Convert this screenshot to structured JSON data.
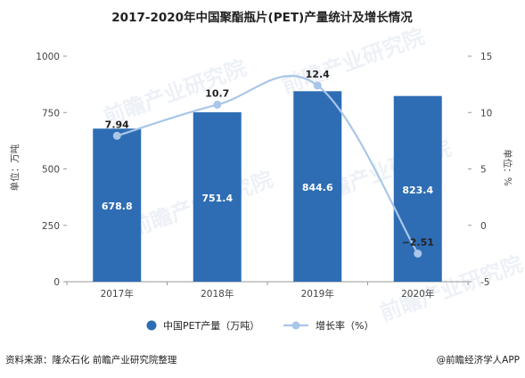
{
  "chart_data": {
    "type": "bar",
    "title": "2017-2020年中国聚酯瓶片(PET)产量统计及增长情况",
    "categories": [
      "2017年",
      "2018年",
      "2019年",
      "2020年"
    ],
    "series": [
      {
        "name": "中国PET产量（万吨）",
        "type": "bar",
        "axis": "left",
        "color": "#2e6db4",
        "values": [
          678.8,
          751.4,
          844.6,
          823.4
        ],
        "labels": [
          "678.8",
          "751.4",
          "844.6",
          "823.4"
        ]
      },
      {
        "name": "增长率（%）",
        "type": "line",
        "axis": "right",
        "color": "#a9c6e8",
        "values": [
          7.94,
          10.7,
          12.4,
          -2.51
        ],
        "labels": [
          "7.94",
          "10.7",
          "12.4",
          "−2.51"
        ]
      }
    ],
    "y_left": {
      "label": "单位：万吨",
      "ylim": [
        0,
        1000
      ],
      "ticks": [
        0,
        250,
        500,
        750,
        1000
      ]
    },
    "y_right": {
      "label": "单位：%",
      "ylim": [
        -5,
        15
      ],
      "ticks": [
        "-5",
        "0",
        "5",
        "10",
        "15"
      ]
    },
    "grid": false,
    "legend_position": "bottom-center"
  },
  "source": "资料来源：隆众石化 前瞻产业研究院整理",
  "brand": "@前瞻经济学人APP",
  "watermark": "前瞻产业研究院"
}
